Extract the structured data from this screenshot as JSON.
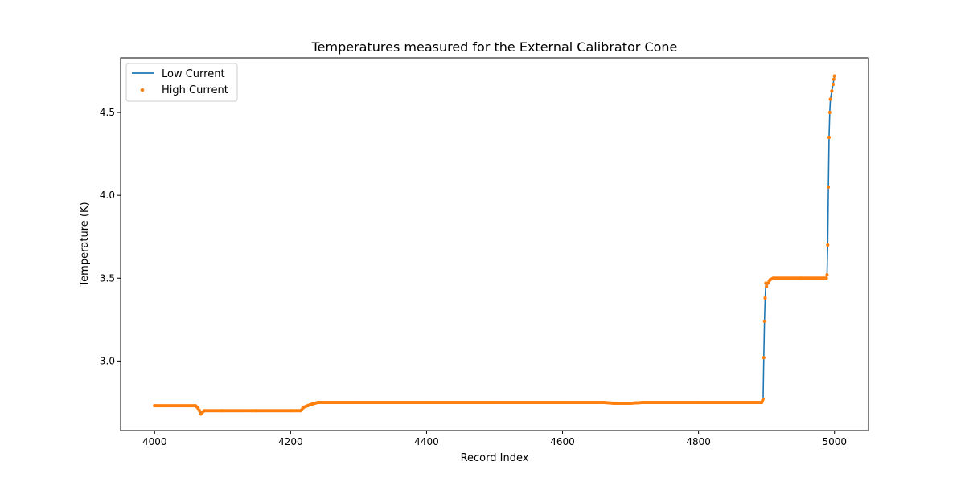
{
  "chart_data": {
    "type": "line",
    "title": "Temperatures measured for the External Calibrator Cone",
    "xlabel": "Record Index",
    "ylabel": "Temperature (K)",
    "xlim": [
      3950,
      5050
    ],
    "ylim": [
      2.58,
      4.83
    ],
    "xticks": [
      4000,
      4200,
      4400,
      4600,
      4800,
      5000
    ],
    "yticks": [
      3.0,
      3.5,
      4.0,
      4.5
    ],
    "ytick_labels": [
      "3.0",
      "3.5",
      "4.0",
      "4.5"
    ],
    "grid": false,
    "legend": "top-left",
    "series": [
      {
        "name": "Low Current",
        "style": "line",
        "color": "#1f77b4",
        "points": [
          [
            4000,
            2.73
          ],
          [
            4060,
            2.73
          ],
          [
            4063,
            2.72
          ],
          [
            4066,
            2.7
          ],
          [
            4068,
            2.68
          ],
          [
            4070,
            2.69
          ],
          [
            4073,
            2.7
          ],
          [
            4100,
            2.7
          ],
          [
            4150,
            2.7
          ],
          [
            4200,
            2.7
          ],
          [
            4215,
            2.7
          ],
          [
            4219,
            2.72
          ],
          [
            4225,
            2.73
          ],
          [
            4232,
            2.74
          ],
          [
            4240,
            2.75
          ],
          [
            4300,
            2.75
          ],
          [
            4400,
            2.75
          ],
          [
            4500,
            2.75
          ],
          [
            4600,
            2.75
          ],
          [
            4660,
            2.75
          ],
          [
            4675,
            2.745
          ],
          [
            4700,
            2.745
          ],
          [
            4720,
            2.75
          ],
          [
            4800,
            2.75
          ],
          [
            4893,
            2.75
          ],
          [
            4895,
            2.77
          ],
          [
            4896,
            3.02
          ],
          [
            4897,
            3.24
          ],
          [
            4898,
            3.38
          ],
          [
            4899,
            3.47
          ],
          [
            4900,
            3.45
          ],
          [
            4902,
            3.47
          ],
          [
            4905,
            3.49
          ],
          [
            4910,
            3.5
          ],
          [
            4950,
            3.5
          ],
          [
            4988,
            3.5
          ],
          [
            4989,
            3.52
          ],
          [
            4990,
            3.7
          ],
          [
            4991,
            4.05
          ],
          [
            4992,
            4.35
          ],
          [
            4993,
            4.5
          ],
          [
            4994,
            4.58
          ],
          [
            4996,
            4.63
          ],
          [
            4998,
            4.67
          ],
          [
            4999,
            4.7
          ],
          [
            5000,
            4.72
          ]
        ]
      },
      {
        "name": "High Current",
        "style": "scatter",
        "color": "#ff7f0e",
        "points": [
          [
            4000,
            2.73
          ],
          [
            4060,
            2.73
          ],
          [
            4063,
            2.72
          ],
          [
            4066,
            2.7
          ],
          [
            4068,
            2.68
          ],
          [
            4070,
            2.69
          ],
          [
            4073,
            2.7
          ],
          [
            4100,
            2.7
          ],
          [
            4150,
            2.7
          ],
          [
            4200,
            2.7
          ],
          [
            4215,
            2.7
          ],
          [
            4219,
            2.72
          ],
          [
            4225,
            2.73
          ],
          [
            4232,
            2.74
          ],
          [
            4240,
            2.75
          ],
          [
            4300,
            2.75
          ],
          [
            4400,
            2.75
          ],
          [
            4500,
            2.75
          ],
          [
            4600,
            2.75
          ],
          [
            4660,
            2.75
          ],
          [
            4675,
            2.745
          ],
          [
            4700,
            2.745
          ],
          [
            4720,
            2.75
          ],
          [
            4800,
            2.75
          ],
          [
            4893,
            2.75
          ],
          [
            4895,
            2.77
          ],
          [
            4896,
            3.02
          ],
          [
            4897,
            3.24
          ],
          [
            4898,
            3.38
          ],
          [
            4899,
            3.47
          ],
          [
            4900,
            3.45
          ],
          [
            4902,
            3.47
          ],
          [
            4905,
            3.49
          ],
          [
            4910,
            3.5
          ],
          [
            4950,
            3.5
          ],
          [
            4988,
            3.5
          ],
          [
            4989,
            3.52
          ],
          [
            4990,
            3.7
          ],
          [
            4991,
            4.05
          ],
          [
            4992,
            4.35
          ],
          [
            4993,
            4.5
          ],
          [
            4994,
            4.58
          ],
          [
            4996,
            4.63
          ],
          [
            4998,
            4.67
          ],
          [
            4999,
            4.7
          ],
          [
            5000,
            4.72
          ]
        ]
      }
    ]
  }
}
